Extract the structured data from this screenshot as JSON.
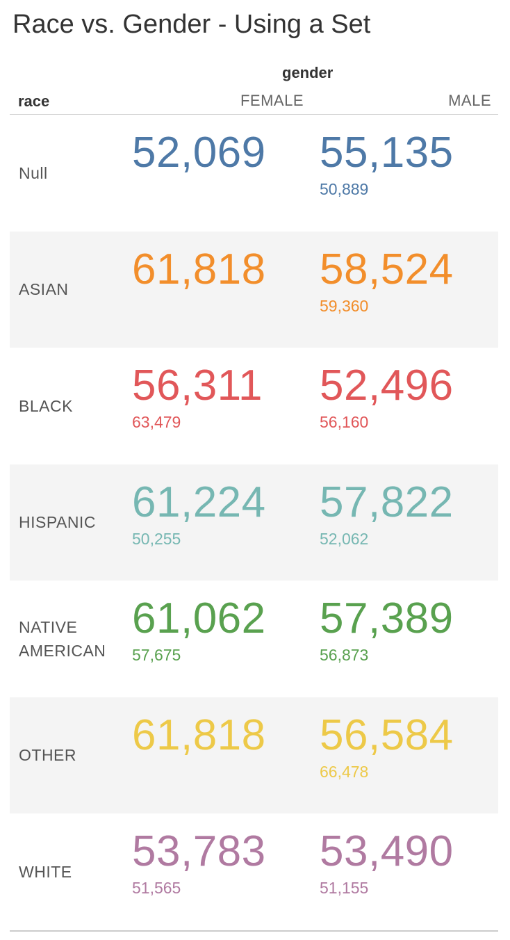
{
  "title": "Race vs. Gender - Using a Set",
  "chart_data": {
    "type": "table",
    "title": "Race vs. Gender - Using a Set",
    "column_group_label": "gender",
    "row_label": "race",
    "columns": [
      "FEMALE",
      "MALE"
    ],
    "rows": [
      {
        "race": "Null",
        "color": "#4e79a7",
        "female": {
          "value": "52,069",
          "sub": ""
        },
        "male": {
          "value": "55,135",
          "sub": "50,889"
        }
      },
      {
        "race": "ASIAN",
        "color": "#f28e2b",
        "female": {
          "value": "61,818",
          "sub": ""
        },
        "male": {
          "value": "58,524",
          "sub": "59,360"
        }
      },
      {
        "race": "BLACK",
        "color": "#e15759",
        "female": {
          "value": "56,311",
          "sub": "63,479"
        },
        "male": {
          "value": "52,496",
          "sub": "56,160"
        }
      },
      {
        "race": "HISPANIC",
        "color": "#76b7b2",
        "female": {
          "value": "61,224",
          "sub": "50,255"
        },
        "male": {
          "value": "57,822",
          "sub": "52,062"
        }
      },
      {
        "race": "NATIVE\nAMERICAN",
        "color": "#59a14f",
        "female": {
          "value": "61,062",
          "sub": "57,675"
        },
        "male": {
          "value": "57,389",
          "sub": "56,873"
        }
      },
      {
        "race": "OTHER",
        "color": "#edc948",
        "female": {
          "value": "61,818",
          "sub": ""
        },
        "male": {
          "value": "56,584",
          "sub": "66,478"
        }
      },
      {
        "race": "WHITE",
        "color": "#b07aa1",
        "female": {
          "value": "53,783",
          "sub": "51,565"
        },
        "male": {
          "value": "53,490",
          "sub": "51,155"
        }
      }
    ]
  }
}
